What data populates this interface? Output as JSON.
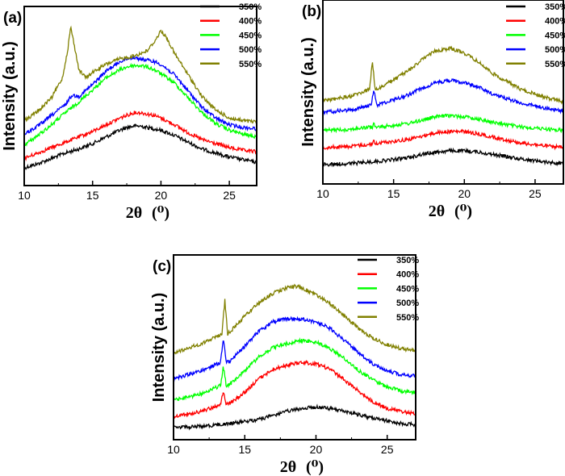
{
  "colors": {
    "350%": "#000000",
    "400%": "#ff0000",
    "450%": "#00ff00",
    "500%": "#0000ff",
    "550%": "#808000"
  },
  "chart_data": [
    {
      "type": "line",
      "panel": "(a)",
      "xlabel": "2θ",
      "xunit": "(⁰)",
      "ylabel": "Intensity (a.u.)",
      "xlim": [
        10,
        27
      ],
      "xticks": [
        10,
        15,
        20,
        25
      ],
      "legend_position": "top-right",
      "series": [
        {
          "name": "350%",
          "color": "#000000",
          "x": [
            10,
            11,
            12,
            13,
            14,
            15,
            16,
            17,
            17.5,
            18,
            18.5,
            19,
            19.5,
            20,
            21,
            22,
            23,
            24,
            25,
            26,
            27
          ],
          "y": [
            0.03,
            0.06,
            0.1,
            0.14,
            0.17,
            0.21,
            0.26,
            0.31,
            0.33,
            0.34,
            0.34,
            0.33,
            0.32,
            0.31,
            0.27,
            0.22,
            0.17,
            0.14,
            0.11,
            0.09,
            0.07
          ]
        },
        {
          "name": "400%",
          "color": "#ff0000",
          "x": [
            10,
            11,
            12,
            13,
            14,
            15,
            16,
            17,
            17.5,
            18,
            18.5,
            19,
            19.5,
            20,
            21,
            22,
            23,
            24,
            25,
            26,
            27
          ],
          "y": [
            0.1,
            0.14,
            0.18,
            0.22,
            0.26,
            0.3,
            0.35,
            0.4,
            0.42,
            0.44,
            0.44,
            0.43,
            0.42,
            0.4,
            0.35,
            0.29,
            0.24,
            0.21,
            0.18,
            0.16,
            0.15
          ]
        },
        {
          "name": "450%",
          "color": "#00ff00",
          "x": [
            10,
            11,
            12,
            13,
            14,
            15,
            16,
            17,
            17.5,
            18,
            18.5,
            19,
            19.5,
            20,
            21,
            22,
            23,
            24,
            25,
            26,
            27
          ],
          "y": [
            0.2,
            0.27,
            0.35,
            0.44,
            0.52,
            0.61,
            0.7,
            0.76,
            0.78,
            0.79,
            0.79,
            0.78,
            0.76,
            0.73,
            0.66,
            0.55,
            0.44,
            0.36,
            0.31,
            0.28,
            0.26
          ]
        },
        {
          "name": "500%",
          "color": "#0000ff",
          "x": [
            10,
            11,
            12,
            13,
            13.5,
            14,
            15,
            16,
            17,
            17.5,
            18,
            18.5,
            19,
            19.5,
            20,
            21,
            22,
            23,
            24,
            25,
            26,
            27
          ],
          "y": [
            0.28,
            0.34,
            0.42,
            0.5,
            0.57,
            0.56,
            0.65,
            0.75,
            0.82,
            0.84,
            0.85,
            0.84,
            0.83,
            0.82,
            0.8,
            0.72,
            0.6,
            0.48,
            0.4,
            0.35,
            0.33,
            0.32
          ]
        },
        {
          "name": "550%",
          "color": "#808000",
          "x": [
            10,
            11,
            12,
            12.8,
            13.2,
            13.4,
            13.7,
            14,
            14.5,
            15,
            16,
            17,
            17.5,
            18,
            19,
            19.6,
            20,
            20.4,
            21,
            22,
            23,
            24,
            25,
            26,
            27
          ],
          "y": [
            0.38,
            0.45,
            0.55,
            0.7,
            0.92,
            1.08,
            0.92,
            0.76,
            0.7,
            0.74,
            0.8,
            0.84,
            0.85,
            0.86,
            0.9,
            0.98,
            1.05,
            1.0,
            0.88,
            0.72,
            0.56,
            0.46,
            0.4,
            0.38,
            0.37
          ]
        }
      ]
    },
    {
      "type": "line",
      "panel": "(b)",
      "xlabel": "2θ",
      "xunit": "(⁰)",
      "ylabel": "Intensity (a.u.)",
      "xlim": [
        10,
        27
      ],
      "xticks": [
        10,
        15,
        20,
        25
      ],
      "legend_position": "top-right",
      "series": [
        {
          "name": "350%",
          "color": "#000000",
          "x": [
            10,
            12,
            14,
            16,
            17,
            18,
            19,
            20,
            21,
            22,
            24,
            26,
            27
          ],
          "y": [
            0.0,
            0.01,
            0.03,
            0.06,
            0.09,
            0.11,
            0.12,
            0.12,
            0.11,
            0.09,
            0.05,
            0.02,
            0.01
          ]
        },
        {
          "name": "400%",
          "color": "#ff0000",
          "x": [
            10,
            12,
            13.5,
            13.6,
            13.7,
            14,
            16,
            17,
            18,
            19,
            20,
            21,
            22,
            24,
            26,
            27
          ],
          "y": [
            0.15,
            0.16,
            0.18,
            0.22,
            0.18,
            0.19,
            0.22,
            0.25,
            0.28,
            0.29,
            0.29,
            0.27,
            0.24,
            0.19,
            0.16,
            0.15
          ]
        },
        {
          "name": "450%",
          "color": "#00ff00",
          "x": [
            10,
            12,
            13.5,
            13.6,
            13.7,
            14,
            16,
            17,
            18,
            19,
            20,
            21,
            22,
            24,
            26,
            27
          ],
          "y": [
            0.3,
            0.31,
            0.33,
            0.36,
            0.33,
            0.33,
            0.36,
            0.39,
            0.42,
            0.43,
            0.42,
            0.4,
            0.37,
            0.33,
            0.31,
            0.3
          ]
        },
        {
          "name": "500%",
          "color": "#0000ff",
          "x": [
            10,
            12,
            13.4,
            13.6,
            13.8,
            14,
            16,
            17,
            18,
            19,
            20,
            21,
            22,
            24,
            26,
            27
          ],
          "y": [
            0.46,
            0.48,
            0.52,
            0.66,
            0.52,
            0.53,
            0.61,
            0.67,
            0.72,
            0.74,
            0.72,
            0.68,
            0.62,
            0.54,
            0.49,
            0.47
          ]
        },
        {
          "name": "550%",
          "color": "#808000",
          "x": [
            10,
            12,
            13.3,
            13.5,
            13.7,
            14,
            16,
            17,
            18,
            19,
            20,
            21,
            22,
            24,
            26,
            27
          ],
          "y": [
            0.56,
            0.6,
            0.66,
            0.9,
            0.66,
            0.67,
            0.82,
            0.92,
            1.0,
            1.02,
            0.98,
            0.9,
            0.8,
            0.66,
            0.58,
            0.55
          ]
        }
      ]
    },
    {
      "type": "line",
      "panel": "(c)",
      "xlabel": "2θ",
      "xunit": "(⁰)",
      "ylabel": "Intensity (a.u.)",
      "xlim": [
        10,
        27
      ],
      "xticks": [
        10,
        15,
        20,
        25
      ],
      "legend_position": "top-right",
      "series": [
        {
          "name": "350%",
          "color": "#000000",
          "x": [
            10,
            12,
            14,
            16,
            17,
            18,
            19,
            20,
            21,
            22,
            24,
            26,
            27
          ],
          "y": [
            0.0,
            0.01,
            0.03,
            0.06,
            0.09,
            0.12,
            0.14,
            0.15,
            0.14,
            0.12,
            0.07,
            0.03,
            0.02
          ]
        },
        {
          "name": "400%",
          "color": "#ff0000",
          "x": [
            10,
            12,
            13.3,
            13.5,
            13.7,
            14,
            15,
            16,
            17,
            18,
            19,
            20,
            21,
            22,
            23,
            24,
            25,
            26,
            27
          ],
          "y": [
            0.08,
            0.12,
            0.17,
            0.27,
            0.17,
            0.18,
            0.26,
            0.36,
            0.43,
            0.46,
            0.48,
            0.47,
            0.43,
            0.35,
            0.27,
            0.19,
            0.14,
            0.12,
            0.1
          ]
        },
        {
          "name": "450%",
          "color": "#00ff00",
          "x": [
            10,
            12,
            13.3,
            13.5,
            13.7,
            14,
            15,
            16,
            17,
            18,
            19,
            20,
            21,
            22,
            23,
            24,
            25,
            26,
            27
          ],
          "y": [
            0.2,
            0.25,
            0.31,
            0.45,
            0.31,
            0.32,
            0.42,
            0.52,
            0.59,
            0.62,
            0.64,
            0.63,
            0.58,
            0.51,
            0.42,
            0.35,
            0.3,
            0.27,
            0.26
          ]
        },
        {
          "name": "500%",
          "color": "#0000ff",
          "x": [
            10,
            12,
            13.3,
            13.5,
            13.7,
            14,
            15,
            16,
            17,
            18,
            19,
            20,
            21,
            22,
            23,
            24,
            25,
            26,
            27
          ],
          "y": [
            0.36,
            0.42,
            0.48,
            0.66,
            0.48,
            0.49,
            0.6,
            0.71,
            0.78,
            0.8,
            0.8,
            0.78,
            0.73,
            0.64,
            0.55,
            0.47,
            0.42,
            0.39,
            0.38
          ]
        },
        {
          "name": "550%",
          "color": "#808000",
          "x": [
            10,
            12,
            13.4,
            13.6,
            13.8,
            14,
            15,
            16,
            17,
            18,
            18.5,
            19,
            20,
            21,
            22,
            23,
            24,
            25,
            26,
            27
          ],
          "y": [
            0.55,
            0.62,
            0.69,
            0.94,
            0.69,
            0.71,
            0.82,
            0.92,
            0.99,
            1.03,
            1.04,
            1.03,
            0.98,
            0.91,
            0.82,
            0.73,
            0.66,
            0.61,
            0.58,
            0.57
          ]
        }
      ]
    }
  ]
}
